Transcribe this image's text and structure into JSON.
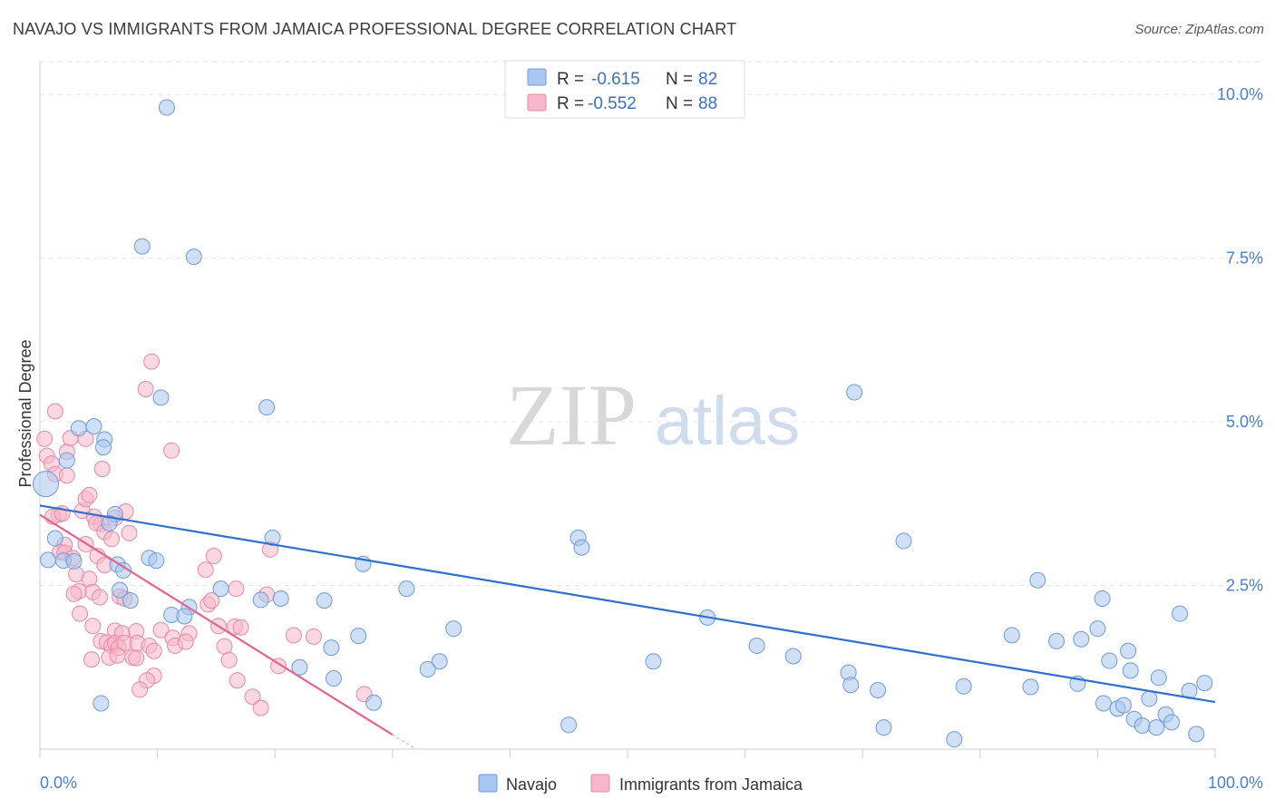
{
  "title": "NAVAJO VS IMMIGRANTS FROM JAMAICA PROFESSIONAL DEGREE CORRELATION CHART",
  "source": "Source: ZipAtlas.com",
  "watermark": {
    "zip": "ZIP",
    "atlas": "atlas"
  },
  "legend": {
    "r_label": "R =",
    "n_label": "N =",
    "items": [
      {
        "r": "-0.615",
        "n": "82",
        "color": "#a8c6ef",
        "edge": "#6f9ad8"
      },
      {
        "r": "-0.552",
        "n": "88",
        "color": "#f7b6c9",
        "edge": "#e58aa7"
      }
    ]
  },
  "bottom_legend": [
    "Navajo",
    "Immigrants from Jamaica"
  ],
  "chart_data": {
    "type": "scatter",
    "title": "NAVAJO VS IMMIGRANTS FROM JAMAICA PROFESSIONAL DEGREE CORRELATION CHART",
    "xlabel": "",
    "ylabel": "Professional Degree",
    "xlim": [
      0,
      100
    ],
    "ylim": [
      0,
      10.5
    ],
    "x_tick_labels": [
      "0.0%",
      "100.0%"
    ],
    "y_ticks": [
      2.5,
      5.0,
      7.5,
      10.0
    ],
    "y_tick_labels": [
      "2.5%",
      "5.0%",
      "7.5%",
      "10.0%"
    ],
    "grid": true,
    "series": [
      {
        "name": "Navajo",
        "color": "#6f9ad8",
        "fill": "#a8c6ef",
        "trend": {
          "x0": 0,
          "y0": 3.72,
          "x1": 100,
          "y1": 0.72,
          "color": "#2f6fce"
        },
        "points": [
          [
            0.5,
            4.05
          ],
          [
            10.8,
            9.8
          ],
          [
            8.7,
            7.68
          ],
          [
            13.1,
            7.52
          ],
          [
            10.3,
            5.37
          ],
          [
            19.3,
            5.22
          ],
          [
            3.3,
            4.9
          ],
          [
            4.6,
            4.93
          ],
          [
            5.5,
            4.73
          ],
          [
            5.4,
            4.61
          ],
          [
            2.3,
            4.41
          ],
          [
            1.3,
            3.22
          ],
          [
            6.4,
            3.59
          ],
          [
            5.9,
            3.45
          ],
          [
            0.7,
            2.89
          ],
          [
            2.0,
            2.88
          ],
          [
            2.9,
            2.87
          ],
          [
            9.3,
            2.92
          ],
          [
            9.9,
            2.88
          ],
          [
            6.6,
            2.82
          ],
          [
            7.1,
            2.73
          ],
          [
            6.8,
            2.43
          ],
          [
            7.7,
            2.27
          ],
          [
            12.7,
            2.17
          ],
          [
            11.2,
            2.05
          ],
          [
            12.3,
            2.03
          ],
          [
            15.4,
            2.45
          ],
          [
            18.8,
            2.28
          ],
          [
            20.5,
            2.3
          ],
          [
            19.8,
            3.23
          ],
          [
            24.2,
            2.27
          ],
          [
            27.5,
            2.83
          ],
          [
            31.2,
            2.45
          ],
          [
            35.2,
            1.84
          ],
          [
            24.8,
            1.55
          ],
          [
            27.1,
            1.73
          ],
          [
            22.1,
            1.25
          ],
          [
            25.0,
            1.08
          ],
          [
            28.4,
            0.71
          ],
          [
            34.0,
            1.34
          ],
          [
            33.0,
            1.22
          ],
          [
            45.8,
            3.23
          ],
          [
            46.1,
            3.08
          ],
          [
            45.0,
            0.37
          ],
          [
            52.2,
            1.34
          ],
          [
            56.8,
            2.01
          ],
          [
            61.0,
            1.58
          ],
          [
            64.1,
            1.42
          ],
          [
            69.3,
            5.45
          ],
          [
            73.5,
            3.18
          ],
          [
            68.8,
            1.17
          ],
          [
            69.0,
            0.98
          ],
          [
            71.3,
            0.9
          ],
          [
            71.8,
            0.33
          ],
          [
            78.6,
            0.96
          ],
          [
            77.8,
            0.15
          ],
          [
            84.9,
            2.58
          ],
          [
            82.7,
            1.74
          ],
          [
            84.3,
            0.95
          ],
          [
            86.5,
            1.65
          ],
          [
            88.6,
            1.68
          ],
          [
            90.0,
            1.84
          ],
          [
            90.4,
            2.3
          ],
          [
            88.3,
            1.0
          ],
          [
            91.0,
            1.35
          ],
          [
            90.5,
            0.7
          ],
          [
            91.7,
            0.62
          ],
          [
            92.2,
            0.67
          ],
          [
            92.6,
            1.5
          ],
          [
            92.8,
            1.2
          ],
          [
            93.1,
            0.46
          ],
          [
            93.8,
            0.36
          ],
          [
            94.4,
            0.77
          ],
          [
            95.2,
            1.09
          ],
          [
            95.0,
            0.33
          ],
          [
            95.8,
            0.53
          ],
          [
            96.3,
            0.41
          ],
          [
            97.0,
            2.07
          ],
          [
            97.8,
            0.89
          ],
          [
            98.4,
            0.23
          ],
          [
            99.1,
            1.01
          ],
          [
            5.2,
            0.7
          ]
        ]
      },
      {
        "name": "Immigrants from Jamaica",
        "color": "#e58aa7",
        "fill": "#f7b6c9",
        "trend": {
          "x0": 0,
          "y0": 3.58,
          "x1": 30.0,
          "y1": 0.22,
          "color": "#e2648f",
          "dash_to_x": 32.0,
          "dash_to_y": 0.0
        },
        "points": [
          [
            0.4,
            4.74
          ],
          [
            1.3,
            5.16
          ],
          [
            0.6,
            4.48
          ],
          [
            1.0,
            4.36
          ],
          [
            1.3,
            4.2
          ],
          [
            2.3,
            4.54
          ],
          [
            2.6,
            4.75
          ],
          [
            3.9,
            4.74
          ],
          [
            2.3,
            4.18
          ],
          [
            1.6,
            3.58
          ],
          [
            1.1,
            3.55
          ],
          [
            1.9,
            3.6
          ],
          [
            3.6,
            3.64
          ],
          [
            3.9,
            3.82
          ],
          [
            4.2,
            3.88
          ],
          [
            4.6,
            3.55
          ],
          [
            5.2,
            3.44
          ],
          [
            6.4,
            3.53
          ],
          [
            7.3,
            3.63
          ],
          [
            4.8,
            3.45
          ],
          [
            5.5,
            3.32
          ],
          [
            6.1,
            3.21
          ],
          [
            7.6,
            3.3
          ],
          [
            2.1,
            3.12
          ],
          [
            3.9,
            3.13
          ],
          [
            1.7,
            3.01
          ],
          [
            2.1,
            3.0
          ],
          [
            4.9,
            2.95
          ],
          [
            2.8,
            2.92
          ],
          [
            5.5,
            2.81
          ],
          [
            3.1,
            2.67
          ],
          [
            4.2,
            2.6
          ],
          [
            3.3,
            2.41
          ],
          [
            2.9,
            2.37
          ],
          [
            4.5,
            2.4
          ],
          [
            5.1,
            2.32
          ],
          [
            6.8,
            2.33
          ],
          [
            7.2,
            2.3
          ],
          [
            3.4,
            2.07
          ],
          [
            4.5,
            1.88
          ],
          [
            6.4,
            1.81
          ],
          [
            7.0,
            1.77
          ],
          [
            8.2,
            1.8
          ],
          [
            5.2,
            1.65
          ],
          [
            5.7,
            1.63
          ],
          [
            6.1,
            1.58
          ],
          [
            6.4,
            1.62
          ],
          [
            6.7,
            1.55
          ],
          [
            7.2,
            1.62
          ],
          [
            8.3,
            1.62
          ],
          [
            9.3,
            1.58
          ],
          [
            4.4,
            1.37
          ],
          [
            5.9,
            1.4
          ],
          [
            6.6,
            1.43
          ],
          [
            7.9,
            1.4
          ],
          [
            8.2,
            1.39
          ],
          [
            9.7,
            1.5
          ],
          [
            10.3,
            1.82
          ],
          [
            11.3,
            1.7
          ],
          [
            11.5,
            1.58
          ],
          [
            12.7,
            1.77
          ],
          [
            9.7,
            1.12
          ],
          [
            9.1,
            1.05
          ],
          [
            8.5,
            0.91
          ],
          [
            12.4,
            1.64
          ],
          [
            14.3,
            2.21
          ],
          [
            14.6,
            2.27
          ],
          [
            14.1,
            2.74
          ],
          [
            14.8,
            2.95
          ],
          [
            16.7,
            2.45
          ],
          [
            19.3,
            2.36
          ],
          [
            19.6,
            3.05
          ],
          [
            15.2,
            1.88
          ],
          [
            15.7,
            1.57
          ],
          [
            16.1,
            1.36
          ],
          [
            16.6,
            1.87
          ],
          [
            17.1,
            1.86
          ],
          [
            16.8,
            1.05
          ],
          [
            18.1,
            0.8
          ],
          [
            18.8,
            0.63
          ],
          [
            20.3,
            1.27
          ],
          [
            21.6,
            1.74
          ],
          [
            23.3,
            1.72
          ],
          [
            27.6,
            0.84
          ],
          [
            9.5,
            5.92
          ],
          [
            9.0,
            5.5
          ],
          [
            11.2,
            4.56
          ],
          [
            5.3,
            4.28
          ]
        ]
      }
    ]
  }
}
